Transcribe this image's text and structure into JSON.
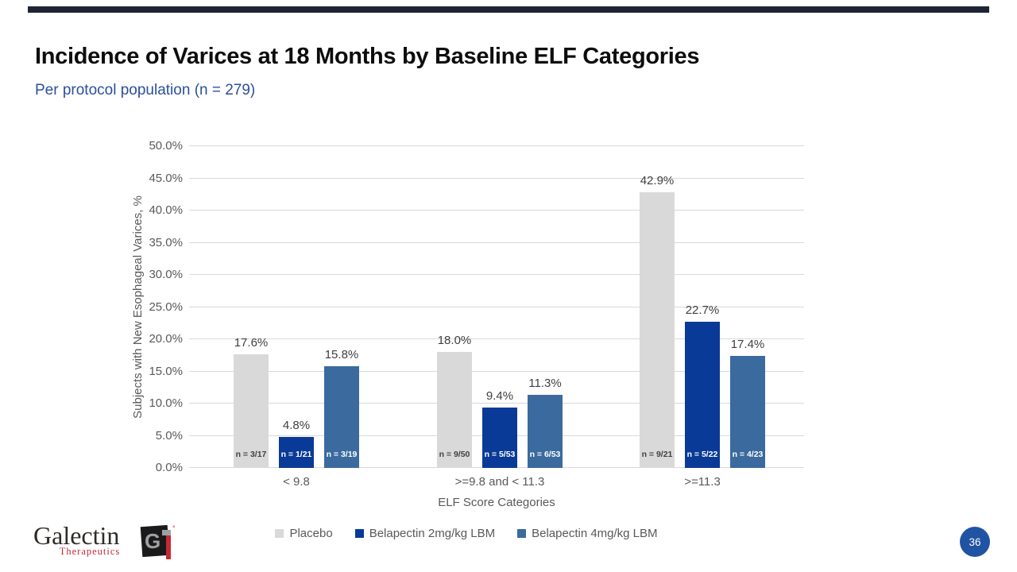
{
  "slide": {
    "title": "Incidence of Varices at 18 Months by Baseline ELF Categories",
    "subtitle": "Per protocol population (n = 279)",
    "page_number": "36",
    "accent_bar_color": "#1e2433",
    "page_badge_color": "#2053a3"
  },
  "logo": {
    "name": "Galectin",
    "sub": "Therapeutics",
    "g_glyph": "G",
    "reg_mark": "°"
  },
  "chart_data": {
    "type": "bar",
    "categories": [
      "< 9.8",
      ">=9.8 and < 11.3",
      ">=11.3"
    ],
    "series": [
      {
        "name": "Placebo",
        "color": "#d9d9d9",
        "values": [
          17.6,
          18.0,
          42.9
        ],
        "value_labels": [
          "17.6%",
          "18.0%",
          "42.9%"
        ],
        "n_labels": [
          "n = 3/17",
          "n = 9/50",
          "n = 9/21"
        ],
        "n_label_color": "#404040"
      },
      {
        "name": "Belapectin 2mg/kg LBM",
        "color": "#0a3a97",
        "values": [
          4.8,
          9.4,
          22.7
        ],
        "value_labels": [
          "4.8%",
          "9.4%",
          "22.7%"
        ],
        "n_labels": [
          "n = 1/21",
          "n = 5/53",
          "n = 5/22"
        ],
        "n_label_color": "#ffffff"
      },
      {
        "name": "Belapectin 4mg/kg LBM",
        "color": "#3a6a9e",
        "values": [
          15.8,
          11.3,
          17.4
        ],
        "value_labels": [
          "15.8%",
          "11.3%",
          "17.4%"
        ],
        "n_labels": [
          "n = 3/19",
          "n = 6/53",
          "n = 4/23"
        ],
        "n_label_color": "#ffffff"
      }
    ],
    "xlabel": "ELF Score Categories",
    "ylabel": "Subjects with New Esophageal Varices, %",
    "ylim": [
      0,
      50
    ],
    "yticks": [
      "0.0%",
      "5.0%",
      "10.0%",
      "15.0%",
      "20.0%",
      "25.0%",
      "30.0%",
      "35.0%",
      "40.0%",
      "45.0%",
      "50.0%"
    ],
    "grid": true,
    "legend_position": "bottom"
  }
}
